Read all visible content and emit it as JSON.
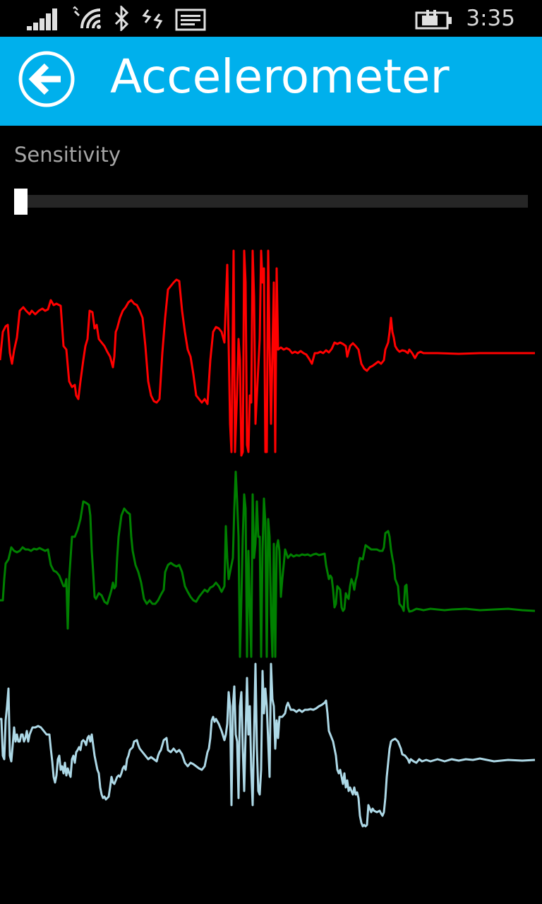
{
  "status_bar": {
    "time": "3:35",
    "icons": [
      "signal-icon",
      "wifi-icon",
      "bluetooth-icon",
      "data-icon",
      "message-icon",
      "battery-charging-icon"
    ]
  },
  "header": {
    "title": "Accelerometer",
    "back_icon": "back-arrow-icon",
    "color": "#00b0ec"
  },
  "sensitivity": {
    "label": "Sensitivity",
    "value": 0
  },
  "graphs": {
    "colors": {
      "x": "#ff0000",
      "y": "#008000",
      "z": "#add8e6"
    }
  }
}
